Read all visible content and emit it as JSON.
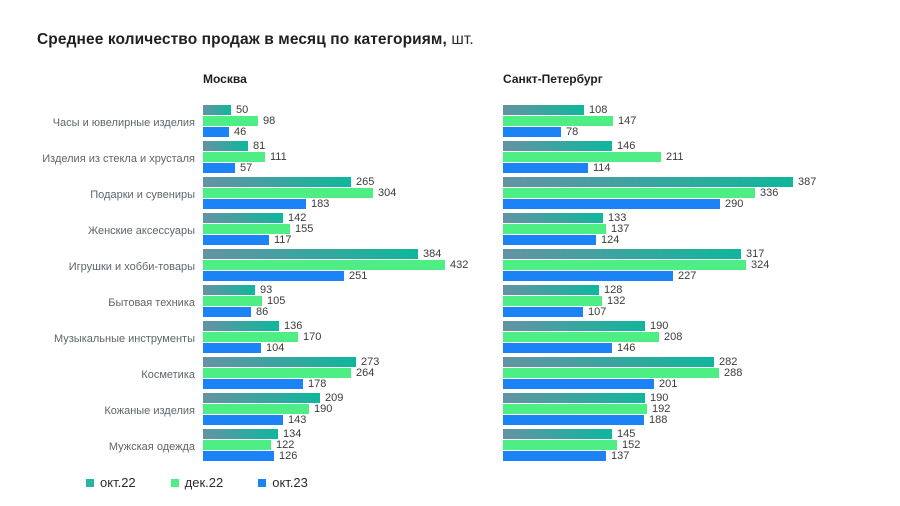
{
  "title": {
    "main": "Среднее количество продаж в месяц по категориям,",
    "unit": "шт."
  },
  "legend": {
    "items": [
      {
        "label": "окт.22",
        "color": "#29b3a0"
      },
      {
        "label": "дек.22",
        "color": "#4fee85"
      },
      {
        "label": "окт.23",
        "color": "#1b83f5"
      }
    ]
  },
  "chart_data": {
    "type": "bar",
    "orientation": "horizontal",
    "title": "Среднее количество продаж в месяц по категориям, шт.",
    "grid": false,
    "value_labels": true,
    "legend_position": "bottom",
    "categories": [
      "Часы и ювелирные изделия",
      "Изделия из стекла и хрусталя",
      "Подарки и сувениры",
      "Женские аксессуары",
      "Игрушки и хобби-товары",
      "Бытовая техника",
      "Музыкальные инструменты",
      "Косметика",
      "Кожаные изделия",
      "Мужская одежда"
    ],
    "series_names": [
      "окт.22",
      "дек.22",
      "окт.23"
    ],
    "colors": [
      {
        "name": "окт.22",
        "from": "#6493a3",
        "to": "#0fb79c"
      },
      {
        "name": "дек.22",
        "from": "#4fee85",
        "to": "#4fee85"
      },
      {
        "name": "окт.23",
        "from": "#1b83f5",
        "to": "#1b83f5"
      }
    ],
    "panels": [
      {
        "name": "Москва",
        "xmax": 432,
        "series": [
          {
            "name": "окт.22",
            "values": [
              50,
              81,
              265,
              142,
              384,
              93,
              136,
              273,
              209,
              134
            ]
          },
          {
            "name": "дек.22",
            "values": [
              98,
              111,
              304,
              155,
              432,
              105,
              170,
              264,
              190,
              122
            ]
          },
          {
            "name": "окт.23",
            "values": [
              46,
              57,
              183,
              117,
              251,
              86,
              104,
              178,
              143,
              126
            ]
          }
        ]
      },
      {
        "name": "Санкт-Петербург",
        "xmax": 387,
        "series": [
          {
            "name": "окт.22",
            "values": [
              108,
              146,
              387,
              133,
              317,
              128,
              190,
              282,
              190,
              145
            ]
          },
          {
            "name": "дек.22",
            "values": [
              147,
              211,
              336,
              137,
              324,
              132,
              208,
              288,
              192,
              152
            ]
          },
          {
            "name": "окт.23",
            "values": [
              78,
              114,
              290,
              124,
              227,
              107,
              146,
              201,
              188,
              137
            ]
          }
        ]
      }
    ]
  }
}
